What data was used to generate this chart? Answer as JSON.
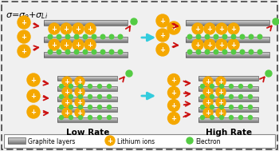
{
  "bg_color": "#f0f0f0",
  "border_color": "#444444",
  "graphite_light": "#d8d8d8",
  "graphite_dark": "#707070",
  "lithium_color": "#f5a800",
  "lithium_edge": "#c87800",
  "electron_color": "#55cc44",
  "electron_edge": "#228822",
  "arrow_red": "#cc1111",
  "arrow_cyan": "#33ccdd",
  "low_rate_label": "Low Rate",
  "high_rate_label": "High Rate",
  "legend_graphite": "Graphite layers",
  "legend_lithium": "Lithium ions",
  "legend_electron": "Electron",
  "formula": "σ=σ_e+σ_{Li}"
}
